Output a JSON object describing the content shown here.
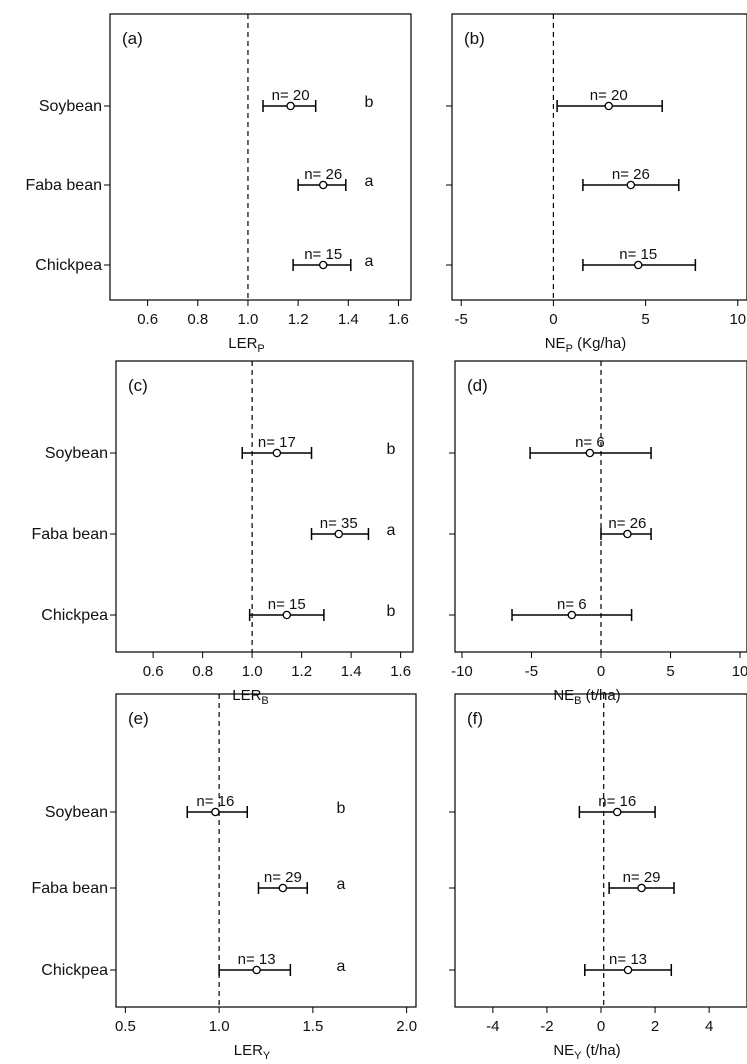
{
  "chart_data": [
    {
      "type": "scatter",
      "panel": "(a)",
      "categories": [
        "Soybean",
        "Faba bean",
        "Chickpea"
      ],
      "xlabel": "LER",
      "xlabel_sub": "P",
      "xlim": [
        0.45,
        1.65
      ],
      "xticks": [
        0.6,
        0.8,
        1.0,
        1.2,
        1.4,
        1.6
      ],
      "xtick_labels": [
        "0.6",
        "0.8",
        "1.0",
        "1.2",
        "1.4",
        "1.6"
      ],
      "reference_line": 1.0,
      "series": [
        {
          "category": "Soybean",
          "mean": 1.17,
          "low": 1.06,
          "high": 1.27,
          "n_label": "n= 20",
          "letter": "b"
        },
        {
          "category": "Faba bean",
          "mean": 1.3,
          "low": 1.2,
          "high": 1.39,
          "n_label": "n= 26",
          "letter": "a"
        },
        {
          "category": "Chickpea",
          "mean": 1.3,
          "low": 1.18,
          "high": 1.41,
          "n_label": "n= 15",
          "letter": "a"
        }
      ]
    },
    {
      "type": "scatter",
      "panel": "(b)",
      "categories": [
        "Soybean",
        "Faba bean",
        "Chickpea"
      ],
      "xlabel": "NE",
      "xlabel_sub": "P",
      "xlabel_suffix": " (Kg/ha)",
      "xlim": [
        -5.5,
        10.5
      ],
      "xticks": [
        -5,
        0,
        5,
        10
      ],
      "xtick_labels": [
        "-5",
        "0",
        "5",
        "10"
      ],
      "reference_line": 0,
      "series": [
        {
          "category": "Soybean",
          "mean": 3.0,
          "low": 0.2,
          "high": 5.9,
          "n_label": "n= 20",
          "letter": ""
        },
        {
          "category": "Faba bean",
          "mean": 4.2,
          "low": 1.6,
          "high": 6.8,
          "n_label": "n= 26",
          "letter": ""
        },
        {
          "category": "Chickpea",
          "mean": 4.6,
          "low": 1.6,
          "high": 7.7,
          "n_label": "n= 15",
          "letter": ""
        }
      ]
    },
    {
      "type": "scatter",
      "panel": "(c)",
      "categories": [
        "Soybean",
        "Faba bean",
        "Chickpea"
      ],
      "xlabel": "LER",
      "xlabel_sub": "B",
      "xlim": [
        0.45,
        1.65
      ],
      "xticks": [
        0.6,
        0.8,
        1.0,
        1.2,
        1.4,
        1.6
      ],
      "xtick_labels": [
        "0.6",
        "0.8",
        "1.0",
        "1.2",
        "1.4",
        "1.6"
      ],
      "reference_line": 1.0,
      "series": [
        {
          "category": "Soybean",
          "mean": 1.1,
          "low": 0.96,
          "high": 1.24,
          "n_label": "n= 17",
          "letter": "b"
        },
        {
          "category": "Faba bean",
          "mean": 1.35,
          "low": 1.24,
          "high": 1.47,
          "n_label": "n= 35",
          "letter": "a"
        },
        {
          "category": "Chickpea",
          "mean": 1.14,
          "low": 0.99,
          "high": 1.29,
          "n_label": "n= 15",
          "letter": "b"
        }
      ]
    },
    {
      "type": "scatter",
      "panel": "(d)",
      "categories": [
        "Soybean",
        "Faba bean",
        "Chickpea"
      ],
      "xlabel": "NE",
      "xlabel_sub": "B",
      "xlabel_suffix": " (t/ha)",
      "xlim": [
        -10.5,
        10.5
      ],
      "xticks": [
        -10,
        -5,
        0,
        5,
        10
      ],
      "xtick_labels": [
        "-10",
        "-5",
        "0",
        "5",
        "10"
      ],
      "reference_line": 0,
      "series": [
        {
          "category": "Soybean",
          "mean": -0.8,
          "low": -5.1,
          "high": 3.6,
          "n_label": "n= 6",
          "letter": ""
        },
        {
          "category": "Faba bean",
          "mean": 1.9,
          "low": 0.0,
          "high": 3.6,
          "n_label": "n= 26",
          "letter": ""
        },
        {
          "category": "Chickpea",
          "mean": -2.1,
          "low": -6.4,
          "high": 2.2,
          "n_label": "n= 6",
          "letter": ""
        }
      ]
    },
    {
      "type": "scatter",
      "panel": "(e)",
      "categories": [
        "Soybean",
        "Faba bean",
        "Chickpea"
      ],
      "xlabel": "LER",
      "xlabel_sub": "Y",
      "xlim": [
        0.45,
        2.05
      ],
      "xticks": [
        0.5,
        1.0,
        1.5,
        2.0
      ],
      "xtick_labels": [
        "0.5",
        "1.0",
        "1.5",
        "2.0"
      ],
      "reference_line": 1.0,
      "series": [
        {
          "category": "Soybean",
          "mean": 0.98,
          "low": 0.83,
          "high": 1.15,
          "n_label": "n= 16",
          "letter": "b"
        },
        {
          "category": "Faba bean",
          "mean": 1.34,
          "low": 1.21,
          "high": 1.47,
          "n_label": "n= 29",
          "letter": "a"
        },
        {
          "category": "Chickpea",
          "mean": 1.2,
          "low": 1.0,
          "high": 1.38,
          "n_label": "n= 13",
          "letter": "a"
        }
      ]
    },
    {
      "type": "scatter",
      "panel": "(f)",
      "categories": [
        "Soybean",
        "Faba bean",
        "Chickpea"
      ],
      "xlabel": "NE",
      "xlabel_sub": "Y",
      "xlabel_suffix": " (t/ha)",
      "xlim": [
        -5.4,
        5.4
      ],
      "xticks": [
        -4,
        -2,
        0,
        2,
        4
      ],
      "xtick_labels": [
        "-4",
        "-2",
        "0",
        "2",
        "4"
      ],
      "reference_line": 0.1,
      "series": [
        {
          "category": "Soybean",
          "mean": 0.6,
          "low": -0.8,
          "high": 2.0,
          "n_label": "n= 16",
          "letter": ""
        },
        {
          "category": "Faba bean",
          "mean": 1.5,
          "low": 0.3,
          "high": 2.7,
          "n_label": "n= 29",
          "letter": ""
        },
        {
          "category": "Chickpea",
          "mean": 1.0,
          "low": -0.6,
          "high": 2.6,
          "n_label": "n= 13",
          "letter": ""
        }
      ]
    }
  ]
}
